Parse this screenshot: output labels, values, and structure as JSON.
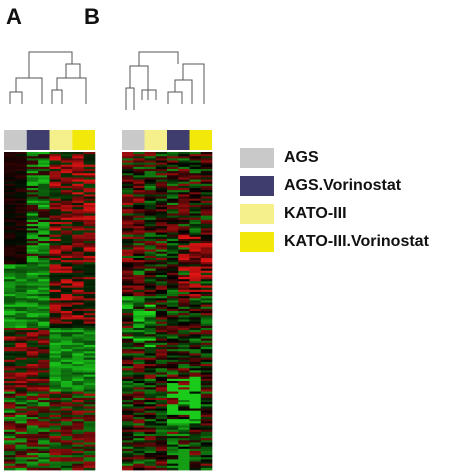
{
  "panels": {
    "a": {
      "letter": "A"
    },
    "b": {
      "letter": "B"
    }
  },
  "colors": {
    "AGS": "#c8c9c8",
    "AGS.Vorinostat": "#3f3d6e",
    "KATO-III": "#f5f08c",
    "KATO-III.Vorinostat": "#f2e80a",
    "heat_low": "#22ee22",
    "heat_mid": "#000000",
    "heat_high": "#ee1111"
  },
  "legend": {
    "items": [
      {
        "label": "AGS",
        "color": "#c8c9c8"
      },
      {
        "label": "AGS.Vorinostat",
        "color": "#3f3d6e"
      },
      {
        "label": "KATO-III",
        "color": "#f5f08c"
      },
      {
        "label": "KATO-III.Vorinostat",
        "color": "#f2e80a"
      }
    ]
  },
  "heatmaps": {
    "a": {
      "sample_groups": [
        "AGS",
        "AGS.Vorinostat",
        "KATO-III",
        "KATO-III.Vorinostat"
      ],
      "samples_per_group": 2
    },
    "b": {
      "sample_groups": [
        "AGS",
        "KATO-III",
        "AGS.Vorinostat",
        "KATO-III.Vorinostat"
      ],
      "samples_per_group": 2
    }
  }
}
